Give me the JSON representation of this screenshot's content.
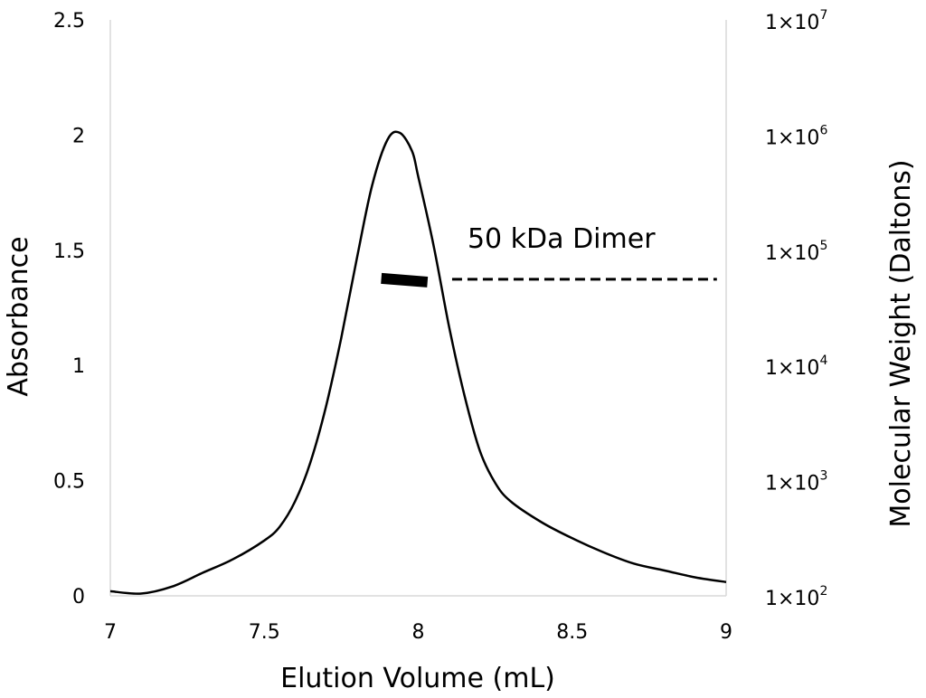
{
  "chart_data": {
    "type": "line",
    "xlabel": "Elution Volume (mL)",
    "ylabel": "Absorbance",
    "y2label": "Molecular Weight (Daltons)",
    "xlim": [
      7,
      9
    ],
    "ylim": [
      0,
      2.5
    ],
    "y2lim": [
      100,
      10000000
    ],
    "y2scale": "log",
    "x_ticks": [
      "7",
      "7.5",
      "8",
      "8.5",
      "9"
    ],
    "y_ticks": [
      "0",
      "0.5",
      "1",
      "1.5",
      "2",
      "2.5"
    ],
    "y2_ticks": [
      {
        "base": "1×10",
        "exp": "2"
      },
      {
        "base": "1×10",
        "exp": "3"
      },
      {
        "base": "1×10",
        "exp": "4"
      },
      {
        "base": "1×10",
        "exp": "5"
      },
      {
        "base": "1×10",
        "exp": "6"
      },
      {
        "base": "1×10",
        "exp": "7"
      }
    ],
    "grid": false,
    "series": [
      {
        "axis": "left",
        "style": "solid",
        "x": [
          7.0,
          7.1,
          7.2,
          7.3,
          7.4,
          7.5,
          7.55,
          7.6,
          7.65,
          7.7,
          7.75,
          7.8,
          7.85,
          7.9,
          7.94,
          7.98,
          8.0,
          8.05,
          8.1,
          8.15,
          8.2,
          8.25,
          8.3,
          8.4,
          8.5,
          8.6,
          8.7,
          8.8,
          8.9,
          9.0
        ],
        "y": [
          0.02,
          0.01,
          0.04,
          0.1,
          0.16,
          0.24,
          0.3,
          0.41,
          0.58,
          0.82,
          1.12,
          1.46,
          1.78,
          1.98,
          2.01,
          1.93,
          1.82,
          1.52,
          1.17,
          0.87,
          0.63,
          0.49,
          0.41,
          0.32,
          0.25,
          0.19,
          0.14,
          0.11,
          0.08,
          0.06
        ]
      },
      {
        "axis": "right",
        "style": "thick",
        "x": [
          7.88,
          8.03
        ],
        "y": [
          57000,
          53000
        ]
      },
      {
        "axis": "right",
        "style": "dashed",
        "x": [
          8.11,
          8.97
        ],
        "y": [
          56000,
          56000
        ]
      }
    ],
    "annotations": [
      {
        "text": "50 kDa Dimer",
        "x": 8.16,
        "y": 1.55
      }
    ]
  }
}
